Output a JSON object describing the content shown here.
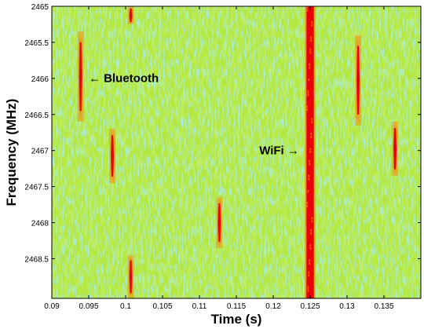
{
  "chart_data": {
    "type": "heatmap",
    "title": "",
    "xlabel": "Time (s)",
    "ylabel": "Frequency (MHz)",
    "xlim": [
      0.09,
      0.14
    ],
    "ylim": [
      2465,
      2469.05
    ],
    "y_inverted": true,
    "x_ticks": [
      "0.09",
      "0.095",
      "0.1",
      "0.105",
      "0.11",
      "0.115",
      "0.12",
      "0.125",
      "0.13",
      "0.135"
    ],
    "x_tick_values": [
      0.09,
      0.095,
      0.1,
      0.105,
      0.11,
      0.115,
      0.12,
      0.125,
      0.13,
      0.135
    ],
    "y_ticks": [
      "2465",
      "2465.5",
      "2466",
      "2466.5",
      "2467",
      "2467.5",
      "2468",
      "2468.5"
    ],
    "y_tick_values": [
      2465,
      2465.5,
      2466,
      2466.5,
      2467,
      2467.5,
      2468,
      2468.5
    ],
    "background_color": "#b4e83c",
    "signal_color": "#e8000a",
    "hot_color": "#ff6a00",
    "noise_colors": [
      "#ffff00",
      "#e6f51e",
      "#96e27a",
      "#6fd6a8",
      "#c9ee2e"
    ],
    "bursts": [
      {
        "t": 0.0939,
        "f0": 2465.35,
        "f1": 2466.6,
        "label": "bluetooth"
      },
      {
        "t": 0.0982,
        "f0": 2466.7,
        "f1": 2467.45,
        "label": "bluetooth"
      },
      {
        "t": 0.1007,
        "f0": 2465.0,
        "f1": 2465.25,
        "label": "bluetooth"
      },
      {
        "t": 0.1007,
        "f0": 2468.45,
        "f1": 2469.05,
        "label": "bluetooth"
      },
      {
        "t": 0.1127,
        "f0": 2467.65,
        "f1": 2468.35,
        "label": "bluetooth"
      },
      {
        "t": 0.1315,
        "f0": 2465.4,
        "f1": 2466.65,
        "label": "bluetooth"
      },
      {
        "t": 0.1365,
        "f0": 2466.6,
        "f1": 2467.35,
        "label": "bluetooth"
      }
    ],
    "wifi_band": {
      "t0": 0.1245,
      "t1": 0.1255,
      "f0": 2465.0,
      "f1": 2469.05
    },
    "annotations": [
      {
        "text": "← Bluetooth",
        "x": 0.095,
        "y": 2466.05
      },
      {
        "text": "WiFi →",
        "x": 0.1235,
        "y": 2467.05
      }
    ]
  }
}
